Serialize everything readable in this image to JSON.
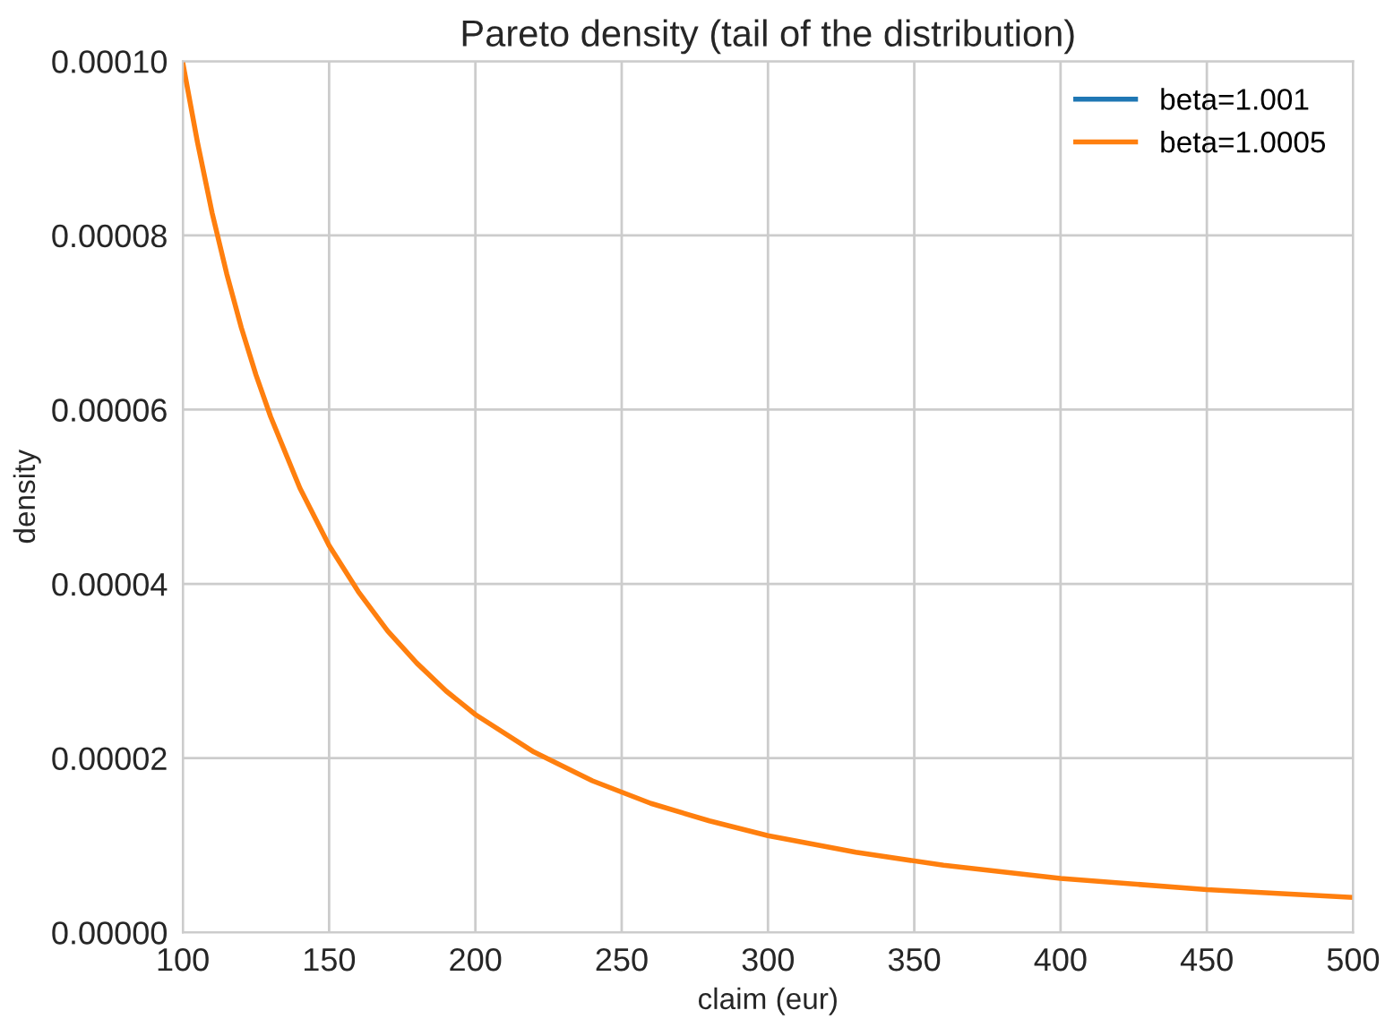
{
  "chart_data": {
    "type": "line",
    "title": "Pareto density (tail of the distribution)",
    "xlabel": "claim (eur)",
    "ylabel": "density",
    "x": [
      100,
      105,
      110,
      115,
      120,
      125,
      130,
      140,
      150,
      160,
      170,
      180,
      190,
      200,
      220,
      240,
      260,
      280,
      300,
      330,
      360,
      400,
      450,
      500
    ],
    "series": [
      {
        "name": "beta=1.001",
        "color": "#1f77b4",
        "values": [
          null,
          null,
          null,
          null,
          null,
          null,
          null,
          null,
          null,
          null,
          null,
          null,
          null,
          null,
          null,
          null,
          null,
          null,
          null,
          null,
          null,
          null,
          null,
          null
        ]
      },
      {
        "name": "beta=1.0005",
        "color": "#ff7f0e",
        "values": [
          9.98e-05,
          9.07e-05,
          8.26e-05,
          7.56e-05,
          6.94e-05,
          6.4e-05,
          5.92e-05,
          5.1e-05,
          4.44e-05,
          3.91e-05,
          3.46e-05,
          3.09e-05,
          2.77e-05,
          2.5e-05,
          2.07e-05,
          1.74e-05,
          1.48e-05,
          1.28e-05,
          1.11e-05,
          9.2e-06,
          7.7e-06,
          6.2e-06,
          4.9e-06,
          4e-06
        ]
      }
    ],
    "xlim": [
      100,
      500
    ],
    "xticks": [
      100,
      150,
      200,
      250,
      300,
      350,
      400,
      450,
      500
    ],
    "ylim": [
      0,
      0.0001
    ],
    "yticks": [
      {
        "value": 0,
        "label": "0.00000"
      },
      {
        "value": 2e-05,
        "label": "0.00002"
      },
      {
        "value": 4e-05,
        "label": "0.00004"
      },
      {
        "value": 6e-05,
        "label": "0.00006"
      },
      {
        "value": 8e-05,
        "label": "0.00008"
      },
      {
        "value": 0.0001,
        "label": "0.00010"
      }
    ],
    "grid": true,
    "legend": "top right"
  }
}
